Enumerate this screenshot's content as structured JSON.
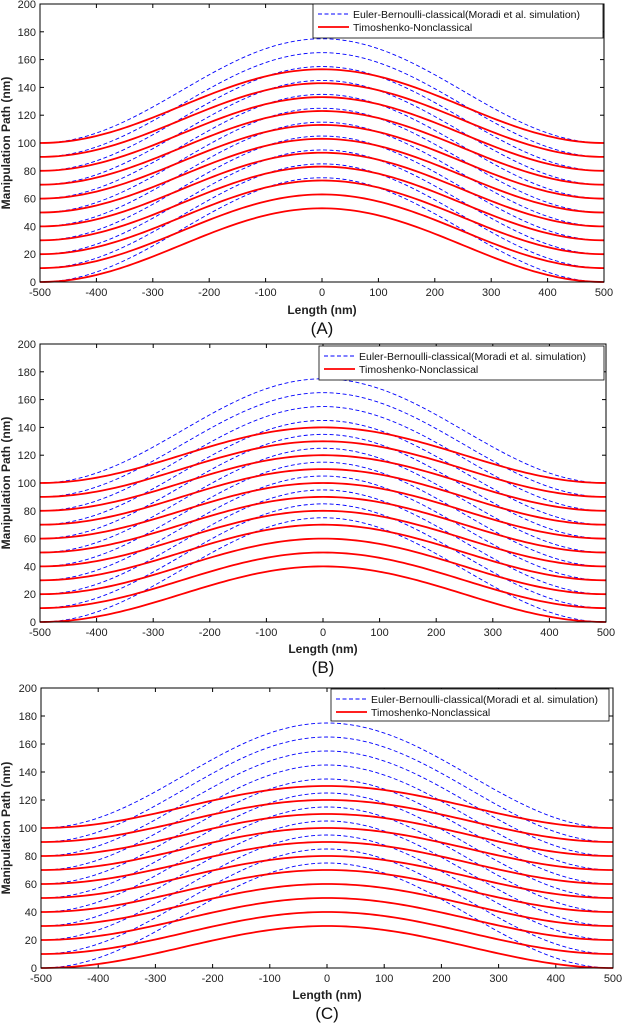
{
  "chart_data": [
    {
      "type": "line",
      "panel_label": "(A)",
      "xlabel": "Length (nm)",
      "ylabel": "Manipulation Path (nm)",
      "xlim": [
        -500,
        500
      ],
      "ylim": [
        0,
        200
      ],
      "xticks": [
        "-500",
        "-400",
        "-300",
        "-200",
        "-100",
        "0",
        "100",
        "200",
        "300",
        "400",
        "500"
      ],
      "yticks": [
        "0",
        "20",
        "40",
        "60",
        "80",
        "100",
        "120",
        "140",
        "160",
        "180",
        "200"
      ],
      "legend": [
        "Euler-Bernoulli-classical(Moradi et al. simulation)",
        "Timoshenko-Nonclassical"
      ],
      "series": [
        {
          "name": "Euler-Bernoulli-classical(Moradi et al. simulation)",
          "color": "#0000ff",
          "style": "dashed",
          "x_peak": 0,
          "curves": [
            [
              0,
              75
            ],
            [
              10,
              85
            ],
            [
              20,
              95
            ],
            [
              30,
              105
            ],
            [
              40,
              115
            ],
            [
              50,
              125
            ],
            [
              60,
              135
            ],
            [
              70,
              145
            ],
            [
              80,
              155
            ],
            [
              90,
              165
            ],
            [
              100,
              175
            ]
          ]
        },
        {
          "name": "Timoshenko-Nonclassical",
          "color": "#ff0000",
          "style": "solid",
          "x_peak": 0,
          "curves": [
            [
              0,
              53
            ],
            [
              10,
              63
            ],
            [
              20,
              73
            ],
            [
              30,
              83
            ],
            [
              40,
              93
            ],
            [
              50,
              103
            ],
            [
              60,
              113
            ],
            [
              70,
              123
            ],
            [
              80,
              133
            ],
            [
              90,
              143
            ],
            [
              100,
              153
            ]
          ]
        }
      ]
    },
    {
      "type": "line",
      "panel_label": "(B)",
      "xlabel": "Length (nm)",
      "ylabel": "Manipulation Path (nm)",
      "xlim": [
        -500,
        500
      ],
      "ylim": [
        0,
        200
      ],
      "xticks": [
        "-500",
        "-400",
        "-300",
        "-200",
        "-100",
        "0",
        "100",
        "200",
        "300",
        "400",
        "500"
      ],
      "yticks": [
        "0",
        "20",
        "40",
        "60",
        "80",
        "100",
        "120",
        "140",
        "160",
        "180",
        "200"
      ],
      "legend": [
        "Euler-Bernoulli-classical(Moradi et al. simulation)",
        "Timoshenko-Nonclassical"
      ],
      "series": [
        {
          "name": "Euler-Bernoulli-classical(Moradi et al. simulation)",
          "color": "#0000ff",
          "style": "dashed",
          "x_peak": 0,
          "curves": [
            [
              0,
              75
            ],
            [
              10,
              85
            ],
            [
              20,
              95
            ],
            [
              30,
              105
            ],
            [
              40,
              115
            ],
            [
              50,
              125
            ],
            [
              60,
              135
            ],
            [
              70,
              145
            ],
            [
              80,
              155
            ],
            [
              90,
              165
            ],
            [
              100,
              175
            ]
          ]
        },
        {
          "name": "Timoshenko-Nonclassical",
          "color": "#ff0000",
          "style": "solid",
          "x_peak": 0,
          "curves": [
            [
              0,
              40
            ],
            [
              10,
              50
            ],
            [
              20,
              60
            ],
            [
              30,
              70
            ],
            [
              40,
              80
            ],
            [
              50,
              90
            ],
            [
              60,
              100
            ],
            [
              70,
              110
            ],
            [
              80,
              120
            ],
            [
              90,
              130
            ],
            [
              100,
              140
            ]
          ]
        }
      ]
    },
    {
      "type": "line",
      "panel_label": "(C)",
      "xlabel": "Length (nm)",
      "ylabel": "Manipulation Path (nm)",
      "xlim": [
        -500,
        500
      ],
      "ylim": [
        0,
        200
      ],
      "xticks": [
        "-500",
        "-400",
        "-300",
        "-200",
        "-100",
        "0",
        "100",
        "200",
        "300",
        "400",
        "500"
      ],
      "yticks": [
        "0",
        "20",
        "40",
        "60",
        "80",
        "100",
        "120",
        "140",
        "160",
        "180",
        "200"
      ],
      "legend": [
        "Euler-Bernoulli-classical(Moradi et al. simulation)",
        "Timoshenko-Nonclassical"
      ],
      "series": [
        {
          "name": "Euler-Bernoulli-classical(Moradi et al. simulation)",
          "color": "#0000ff",
          "style": "dashed",
          "x_peak": 0,
          "curves": [
            [
              0,
              75
            ],
            [
              10,
              85
            ],
            [
              20,
              95
            ],
            [
              30,
              105
            ],
            [
              40,
              115
            ],
            [
              50,
              125
            ],
            [
              60,
              135
            ],
            [
              70,
              145
            ],
            [
              80,
              155
            ],
            [
              90,
              165
            ],
            [
              100,
              175
            ]
          ]
        },
        {
          "name": "Timoshenko-Nonclassical",
          "color": "#ff0000",
          "style": "solid",
          "x_peak": 0,
          "curves": [
            [
              0,
              30
            ],
            [
              10,
              40
            ],
            [
              20,
              50
            ],
            [
              30,
              60
            ],
            [
              40,
              70
            ],
            [
              50,
              80
            ],
            [
              60,
              90
            ],
            [
              70,
              100
            ],
            [
              80,
              110
            ],
            [
              90,
              120
            ],
            [
              100,
              130
            ]
          ]
        }
      ]
    }
  ]
}
